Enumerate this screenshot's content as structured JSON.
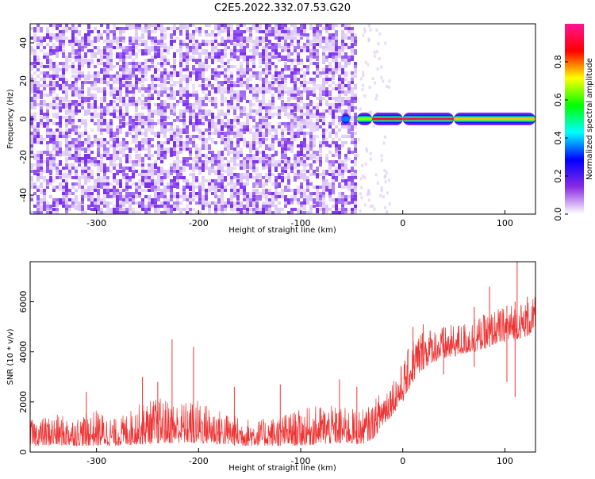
{
  "title": "C2E5.2022.332.07.53.G20",
  "chart_data": [
    {
      "type": "heatmap",
      "xlabel": "Height of straight line (km)",
      "ylabel": "Frequency (Hz)",
      "xlim": [
        -365,
        130
      ],
      "ylim": [
        -50,
        50
      ],
      "xticks": [
        -300,
        -200,
        -100,
        0,
        100
      ],
      "yticks": [
        -40,
        -20,
        0,
        20,
        40
      ],
      "noise_region_x": [
        -365,
        -45
      ],
      "signal_band": {
        "frequency_hz": 0,
        "x_start": -45,
        "x_end": 130,
        "segments": [
          {
            "x": [
              -60,
              -52
            ],
            "amplitude": 0.35
          },
          {
            "x": [
              -45,
              -30
            ],
            "amplitude": 0.65
          },
          {
            "x": [
              -30,
              0
            ],
            "amplitude": 0.9
          },
          {
            "x": [
              0,
              50
            ],
            "amplitude": 0.95
          },
          {
            "x": [
              50,
              130
            ],
            "amplitude": 0.75
          }
        ]
      },
      "colorbar": {
        "label": "Normalized spectral amplitude",
        "range": [
          0,
          1
        ],
        "ticks": [
          0.0,
          0.2,
          0.4,
          0.6,
          0.8
        ],
        "tick_labels": [
          "0.0",
          "0.2",
          "0.4",
          "0.6",
          "0.8"
        ],
        "colors": [
          "#ffffff",
          "#8a2be2",
          "#0000ff",
          "#00ffff",
          "#00ff00",
          "#ffff00",
          "#ff0000",
          "#ff1493"
        ]
      },
      "colors": {
        "noise": "#7b2cf0",
        "noise_light": "#d9c4f5"
      }
    },
    {
      "type": "line",
      "xlabel": "Height of straight line (km)",
      "ylabel": "SNR (10 * v/v)",
      "xlim": [
        -365,
        130
      ],
      "ylim": [
        0,
        7600
      ],
      "xticks": [
        -300,
        -200,
        -100,
        0,
        100
      ],
      "yticks": [
        0,
        2000,
        4000,
        6000
      ],
      "color": "#ee3333",
      "envelope": {
        "x": [
          -365,
          -340,
          -320,
          -300,
          -280,
          -260,
          -240,
          -220,
          -200,
          -180,
          -160,
          -140,
          -120,
          -100,
          -80,
          -60,
          -40,
          -30,
          -20,
          -10,
          0,
          10,
          20,
          30,
          40,
          50,
          60,
          70,
          80,
          90,
          100,
          110,
          120,
          130
        ],
        "low": [
          250,
          250,
          250,
          250,
          250,
          300,
          350,
          350,
          350,
          300,
          250,
          250,
          250,
          250,
          300,
          350,
          300,
          500,
          1000,
          1500,
          2000,
          2800,
          3300,
          3600,
          3700,
          3800,
          3900,
          4000,
          4100,
          4300,
          4400,
          4500,
          4600,
          4800
        ],
        "high": [
          1300,
          1500,
          1400,
          1700,
          1300,
          1900,
          2200,
          2000,
          2100,
          1700,
          1400,
          1300,
          1500,
          1700,
          1900,
          1800,
          1700,
          1900,
          2600,
          3000,
          3600,
          4600,
          5000,
          5000,
          5000,
          5100,
          5200,
          5300,
          5500,
          5700,
          5800,
          6000,
          6000,
          6200
        ]
      },
      "spikes": [
        {
          "x": -310,
          "y": 2400
        },
        {
          "x": -255,
          "y": 3000
        },
        {
          "x": -240,
          "y": 2800
        },
        {
          "x": -226,
          "y": 4500
        },
        {
          "x": -205,
          "y": 4200
        },
        {
          "x": -165,
          "y": 2600
        },
        {
          "x": -120,
          "y": 2700
        },
        {
          "x": -62,
          "y": 2900
        },
        {
          "x": -45,
          "y": 2600
        },
        {
          "x": 10,
          "y": 5000
        },
        {
          "x": 20,
          "y": 5100
        },
        {
          "x": 70,
          "y": 5800
        },
        {
          "x": 85,
          "y": 6600
        },
        {
          "x": 112,
          "y": 7600
        },
        {
          "x": 122,
          "y": 6200
        }
      ],
      "dips": [
        {
          "x": 40,
          "y": 3100
        },
        {
          "x": 70,
          "y": 3400
        },
        {
          "x": 102,
          "y": 2800
        },
        {
          "x": 110,
          "y": 2200
        }
      ]
    }
  ]
}
